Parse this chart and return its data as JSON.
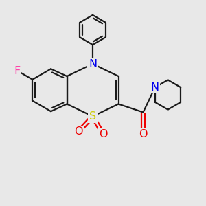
{
  "bg_color": "#e8e8e8",
  "atom_colors": {
    "C": "#1a1a1a",
    "N": "#0000ee",
    "S": "#cccc00",
    "O": "#ee0000",
    "F": "#ff44aa"
  },
  "bond_color": "#1a1a1a",
  "bond_width": 1.6,
  "font_size": 11.5
}
